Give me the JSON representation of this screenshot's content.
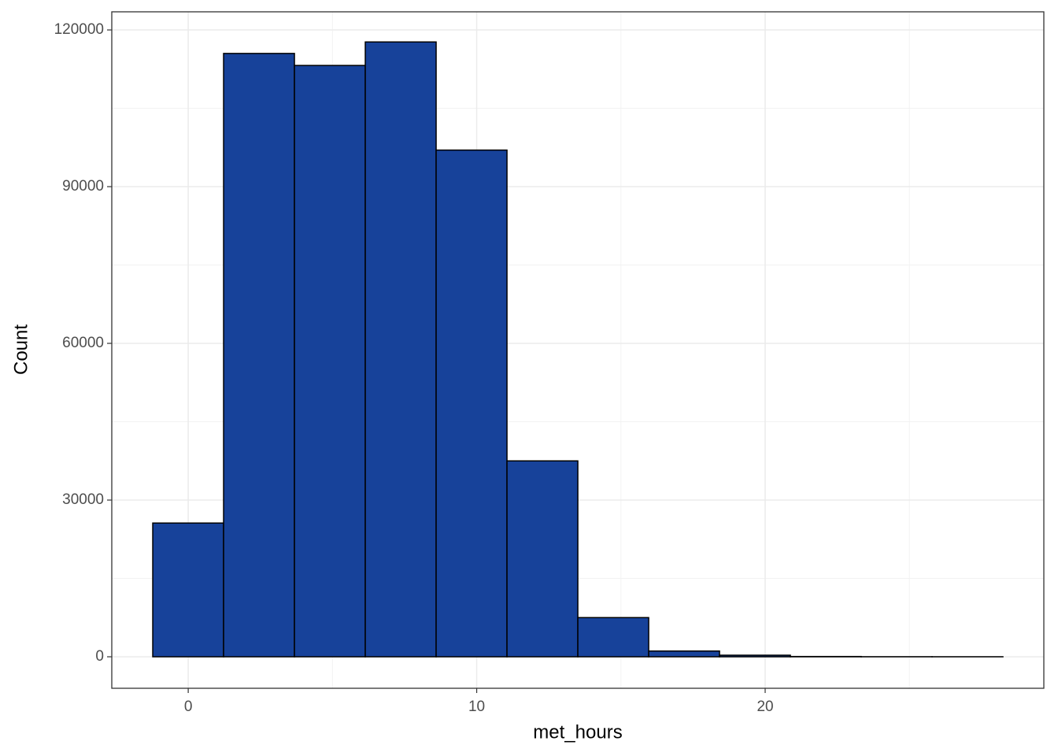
{
  "chart_data": {
    "type": "histogram",
    "xlabel": "met_hours",
    "ylabel": "Count",
    "bins": [
      -1.23,
      1.226,
      3.682,
      6.138,
      8.594,
      11.05,
      13.506,
      15.962,
      18.418,
      20.874,
      23.33,
      25.786,
      28.242
    ],
    "values": [
      25600,
      115500,
      113200,
      117700,
      97000,
      37500,
      7500,
      1100,
      300,
      50,
      10,
      5
    ],
    "color": "#17429a",
    "edgecolor": "#000000",
    "xlim": [
      -2.65,
      29.66
    ],
    "xticks": [
      0,
      10,
      20
    ],
    "ylim": [
      -6030,
      123470
    ],
    "yticks": [
      0,
      30000,
      60000,
      90000,
      120000
    ],
    "grid": true
  }
}
